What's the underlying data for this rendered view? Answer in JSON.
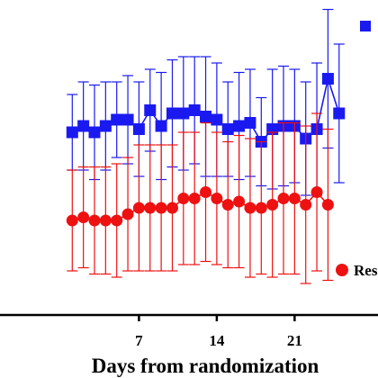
{
  "chart_data": {
    "type": "line",
    "xlabel": "Days from randomization",
    "ylabel": "",
    "xlim": [
      -5.5,
      28.5
    ],
    "ylim": [
      0,
      100
    ],
    "x_ticks": [
      {
        "value": 7,
        "label": "7"
      },
      {
        "value": 14,
        "label": "14"
      },
      {
        "value": 21,
        "label": "21"
      }
    ],
    "x": [
      -5,
      -4,
      -3,
      -2,
      -1,
      0,
      1,
      2,
      3,
      4,
      5,
      6,
      7,
      8,
      9,
      10,
      11,
      12,
      13,
      14,
      15,
      16,
      17,
      18,
      19,
      20,
      21,
      22,
      23,
      24,
      25
    ],
    "legend_position": "right",
    "series": [
      {
        "name": "",
        "color": "#1a1af0",
        "marker": "square",
        "values": [
          null,
          null,
          null,
          null,
          null,
          null,
          58,
          60,
          58,
          60,
          62,
          62,
          59,
          65,
          60,
          64,
          64,
          65,
          63,
          62,
          59,
          60,
          61,
          55,
          59,
          60,
          60,
          56,
          59,
          75,
          64
        ],
        "err": [
          null,
          null,
          null,
          null,
          null,
          null,
          12,
          14,
          15,
          14,
          12,
          14,
          15,
          13,
          17,
          17,
          18,
          17,
          19,
          18,
          15,
          17,
          17,
          14,
          19,
          19,
          18,
          18,
          21,
          22,
          22
        ]
      },
      {
        "name": "Res",
        "color": "#ee1111",
        "marker": "circle",
        "values": [
          null,
          null,
          null,
          null,
          null,
          null,
          30,
          31,
          30,
          30,
          30,
          32,
          34,
          34,
          34,
          34,
          37,
          37,
          39,
          37,
          35,
          36,
          34,
          34,
          35,
          37,
          37,
          35,
          39,
          35,
          null
        ],
        "err": [
          null,
          null,
          null,
          null,
          null,
          null,
          16,
          16,
          17,
          17,
          18,
          18,
          20,
          20,
          20,
          20,
          21,
          21,
          22,
          21,
          20,
          21,
          22,
          21,
          23,
          24,
          24,
          25,
          25,
          24,
          null
        ]
      }
    ],
    "legend": [
      {
        "label": "Res",
        "marker": "circle",
        "color": "#ee1111"
      }
    ]
  }
}
